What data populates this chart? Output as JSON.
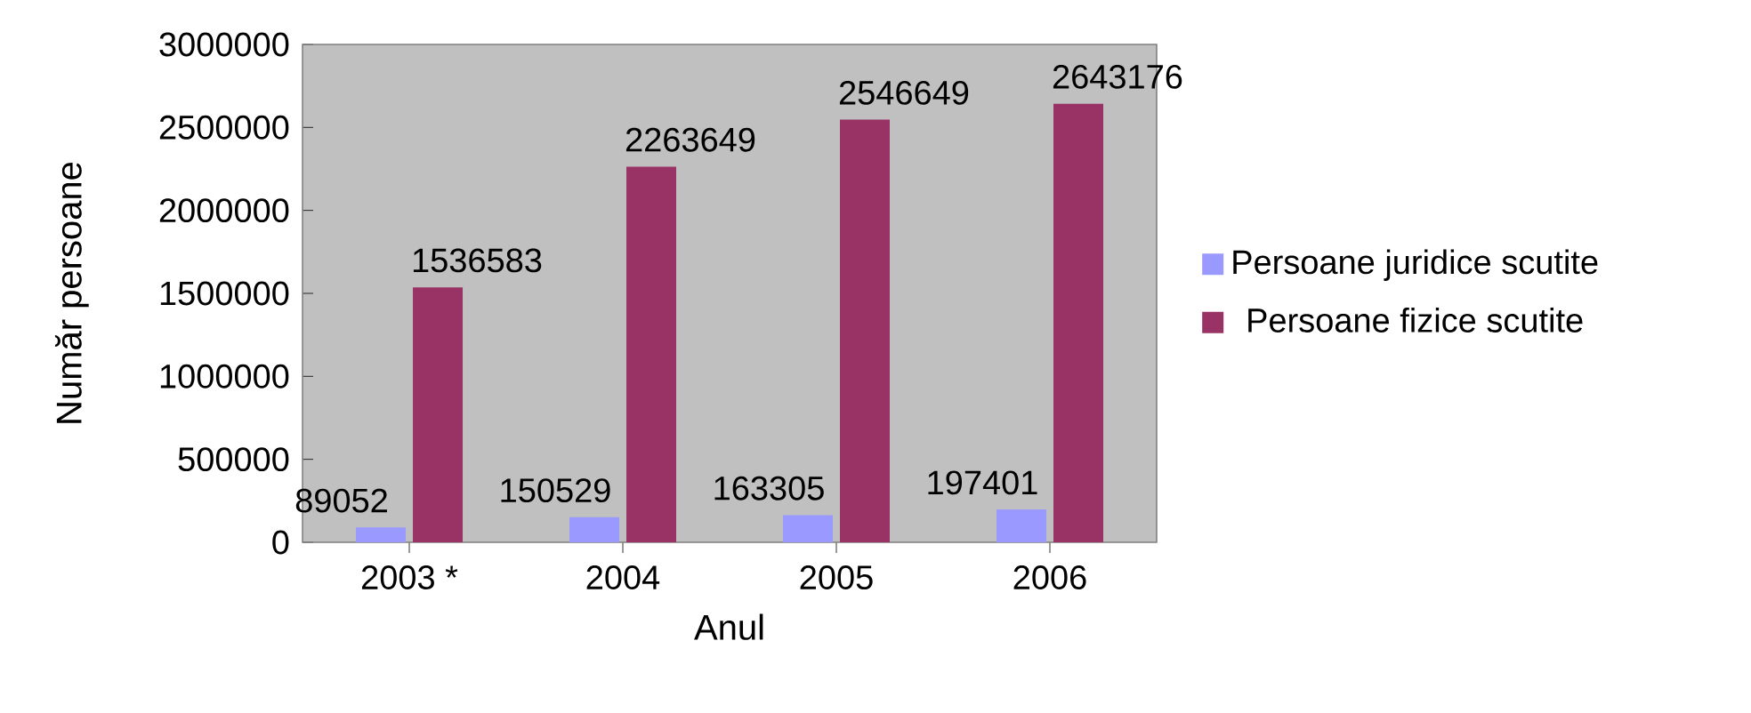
{
  "chart_data": {
    "type": "bar",
    "xlabel": "Anul",
    "ylabel": "Număr persoane",
    "categories": [
      "2003 *",
      "2004",
      "2005",
      "2006"
    ],
    "series": [
      {
        "name": "Persoane juridice scutite",
        "color": "#9999ff",
        "values": [
          89052,
          150529,
          163305,
          197401
        ]
      },
      {
        "name": "Persoane fizice scutite",
        "color": "#993366",
        "values": [
          1536583,
          2263649,
          2546649,
          2643176
        ]
      }
    ],
    "ylim": [
      0,
      3000000
    ],
    "yticks": [
      0,
      500000,
      1000000,
      1500000,
      2000000,
      2500000,
      3000000
    ],
    "data_labels": true,
    "grid": false,
    "legend": "right"
  }
}
